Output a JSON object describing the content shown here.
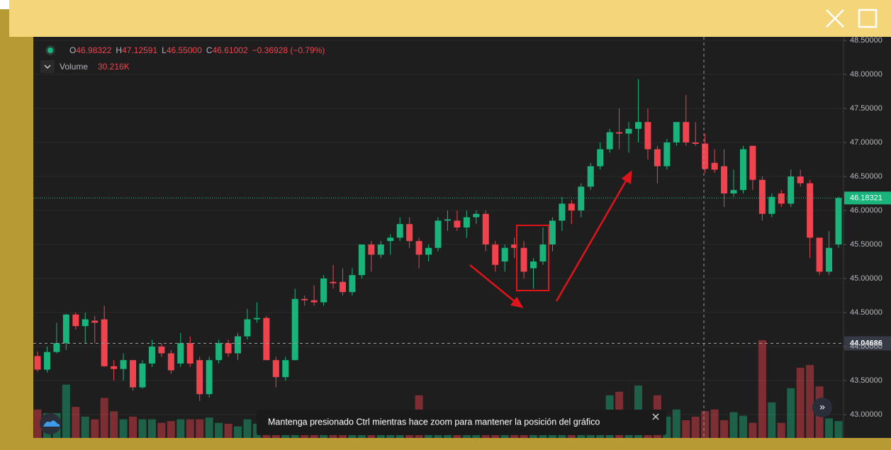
{
  "chart_data": {
    "type": "candlestick",
    "open": [
      43.86,
      43.66,
      43.92,
      44.05,
      44.47,
      44.3,
      44.38,
      44.4,
      43.71,
      43.67,
      43.8,
      43.4,
      43.75,
      44.0,
      43.9,
      43.75,
      44.05,
      43.8,
      43.3,
      43.8,
      44.05,
      43.9,
      44.15,
      44.4,
      44.42,
      43.8,
      43.55,
      43.8,
      44.7,
      44.68,
      44.65,
      44.95,
      44.95,
      44.8,
      45.05,
      45.5,
      45.35,
      45.55,
      45.6,
      45.8,
      45.55,
      45.35,
      45.45,
      45.85,
      45.85,
      45.75,
      45.9,
      45.95,
      45.5,
      45.25,
      45.5,
      45.45,
      45.15,
      45.25,
      45.5,
      45.85,
      46.1,
      46.0,
      46.35,
      46.65,
      46.9,
      47.15,
      47.13,
      47.2,
      47.3,
      46.9,
      46.65,
      47.0,
      47.3,
      47.0,
      46.98322,
      46.7,
      46.65,
      46.25,
      46.3,
      46.95,
      46.45,
      45.95,
      46.25,
      46.1,
      46.5,
      46.4,
      45.6,
      45.1,
      45.5
    ],
    "high": [
      43.93,
      44.0,
      44.35,
      44.48,
      44.5,
      44.5,
      44.45,
      44.6,
      43.8,
      43.9,
      43.8,
      43.8,
      44.1,
      44.05,
      43.95,
      44.2,
      44.15,
      43.85,
      43.85,
      44.1,
      44.1,
      44.2,
      44.55,
      44.65,
      44.45,
      43.85,
      43.85,
      44.85,
      44.75,
      44.9,
      45.05,
      45.2,
      45.15,
      45.15,
      45.5,
      45.55,
      45.55,
      45.65,
      45.9,
      45.9,
      45.6,
      45.5,
      45.9,
      46.0,
      46.0,
      46.0,
      46.0,
      46.0,
      45.55,
      45.5,
      45.6,
      45.55,
      45.3,
      45.75,
      45.9,
      46.2,
      46.15,
      46.4,
      46.7,
      47.0,
      47.2,
      47.5,
      47.3,
      47.93,
      47.5,
      46.95,
      47.05,
      47.3,
      47.7,
      47.3,
      47.12591,
      46.9,
      46.9,
      46.6,
      46.95,
      46.95,
      46.5,
      46.25,
      46.3,
      46.6,
      46.6,
      46.45,
      45.6,
      45.7,
      46.2
    ],
    "low": [
      43.63,
      43.62,
      43.9,
      43.95,
      44.25,
      44.05,
      44.05,
      43.7,
      43.5,
      43.5,
      43.35,
      43.38,
      43.7,
      43.85,
      43.6,
      43.7,
      43.7,
      43.2,
      43.25,
      43.75,
      43.85,
      43.8,
      44.1,
      44.35,
      43.8,
      43.4,
      43.5,
      43.8,
      44.6,
      44.6,
      44.6,
      44.85,
      44.75,
      44.75,
      45.0,
      45.1,
      45.3,
      45.35,
      45.55,
      45.45,
      45.15,
      45.25,
      45.4,
      45.7,
      45.7,
      45.6,
      45.8,
      45.4,
      45.1,
      45.1,
      45.3,
      45.0,
      44.85,
      45.2,
      45.4,
      45.7,
      45.8,
      45.9,
      46.3,
      46.6,
      46.85,
      46.9,
      46.85,
      47.0,
      46.75,
      46.4,
      46.6,
      46.95,
      46.95,
      46.95,
      46.55,
      46.55,
      46.05,
      46.2,
      46.25,
      46.3,
      45.85,
      45.9,
      46.05,
      46.05,
      46.35,
      45.3,
      45.05,
      45.05,
      45.45
    ],
    "close": [
      43.66,
      43.92,
      44.05,
      44.47,
      44.3,
      44.4,
      44.35,
      43.71,
      43.67,
      43.8,
      43.4,
      43.75,
      44.0,
      43.9,
      43.65,
      44.05,
      43.75,
      43.3,
      43.8,
      44.05,
      43.9,
      44.15,
      44.4,
      44.42,
      43.8,
      43.55,
      43.8,
      44.7,
      44.68,
      44.65,
      45.0,
      44.93,
      44.8,
      45.05,
      45.5,
      45.35,
      45.5,
      45.6,
      45.8,
      45.55,
      45.35,
      45.45,
      45.85,
      45.87,
      45.75,
      45.9,
      45.95,
      45.5,
      45.2,
      45.45,
      45.45,
      45.1,
      45.25,
      45.5,
      45.85,
      46.1,
      46.0,
      46.35,
      46.65,
      46.9,
      47.15,
      47.13,
      47.2,
      47.3,
      46.9,
      46.65,
      47.0,
      47.3,
      47.0,
      46.98,
      46.61002,
      46.6,
      46.25,
      46.3,
      46.9,
      46.45,
      45.95,
      46.2,
      46.1,
      46.5,
      46.4,
      45.6,
      45.1,
      45.45,
      46.18321
    ],
    "volume": [
      32,
      28,
      28,
      60,
      35,
      24,
      21,
      45,
      30,
      21,
      24,
      21,
      21,
      17,
      19,
      21,
      21,
      21,
      23,
      17,
      16,
      13,
      21,
      16,
      26,
      22,
      14,
      10,
      12,
      14,
      11,
      13,
      12,
      15,
      14,
      12,
      13,
      16,
      14,
      12,
      48,
      18,
      15,
      14,
      20,
      16,
      14,
      22,
      18,
      15,
      13,
      16,
      20,
      17,
      14,
      18,
      20,
      16,
      18,
      19,
      48,
      52,
      16,
      59,
      20,
      48,
      24,
      32,
      20,
      24,
      30.216,
      32,
      20,
      29,
      25,
      17,
      110,
      40,
      17,
      56,
      79,
      82,
      58,
      22,
      19
    ],
    "up_color": "#1bb37c",
    "down_color": "#f0434e",
    "ylim": [
      42.656,
      48.552
    ],
    "yticks": [
      {
        "value": 43,
        "label": "43.00000"
      },
      {
        "value": 43.5,
        "label": "43.50000"
      },
      {
        "value": 44,
        "label": "44.00000"
      },
      {
        "value": 44.5,
        "label": "44.50000"
      },
      {
        "value": 45,
        "label": "45.00000"
      },
      {
        "value": 45.5,
        "label": "45.50000"
      },
      {
        "value": 46,
        "label": "46.00000"
      },
      {
        "value": 46.5,
        "label": "46.50000"
      },
      {
        "value": 47,
        "label": "47.00000"
      },
      {
        "value": 47.5,
        "label": "47.50000"
      },
      {
        "value": 48,
        "label": "48.00000"
      },
      {
        "value": 48.5,
        "label": "48.50000"
      }
    ],
    "grid": true,
    "last_price": 46.18321,
    "crosshair_price": 44.04686,
    "ohlc_legend": [
      {
        "key": "O",
        "text": "46.98322"
      },
      {
        "key": "H",
        "text": "47.12591"
      },
      {
        "key": "L",
        "text": "46.55000"
      },
      {
        "key": "C",
        "text": "46.61002"
      }
    ],
    "change": "−0.36928 (−0.79%)",
    "volume_label": "Volume",
    "volume_value": "30.216K"
  },
  "tooltip": "Mantenga presionado Ctrl mientras hace zoom para mantener la posición del gráfico"
}
